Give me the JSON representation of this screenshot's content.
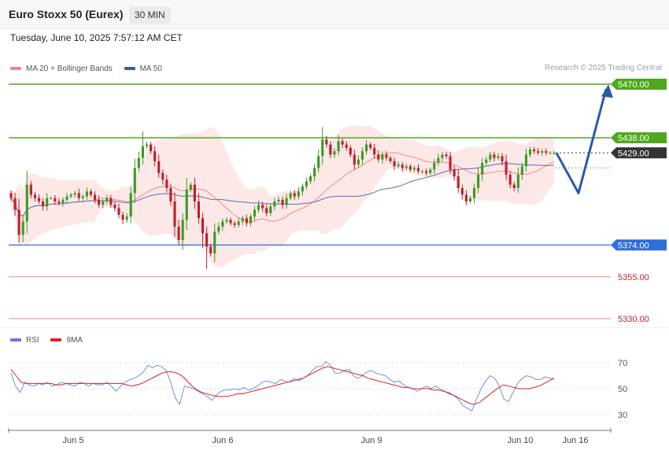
{
  "header": {
    "title": "Euro Stoxx 50 (Eurex)",
    "timeframe": "30 MIN"
  },
  "datetime": "Tuesday, June 10, 2025 7:57:12 AM CET",
  "legend": [
    {
      "label": "MA 20 + Bollinger Bands",
      "color": "#f28b82"
    },
    {
      "label": "MA 50",
      "color": "#3b5f9e"
    }
  ],
  "copyright": "Research © 2025 Trading Central",
  "rsi_legend": [
    {
      "label": "RSI",
      "color": "#5b7fd6"
    },
    {
      "label": "9MA",
      "color": "#e02020"
    }
  ],
  "colors": {
    "up": "#3d9a28",
    "down": "#c0202b",
    "resistance": "#4fa81e",
    "support": "#2e6fd8",
    "support_weak": "#f5a0a0",
    "current": "#333333",
    "forecast": "#2a5aa8"
  },
  "chart_data": [
    {
      "type": "candlestick",
      "title": "Euro Stoxx 50 (Eurex)",
      "timeframe": "30 MIN",
      "x_ticks": [
        "Jun 5",
        "Jun 6",
        "Jun 9",
        "Jun 10",
        "Jun 16"
      ],
      "ylim": [
        5323,
        5475
      ],
      "price_levels": [
        {
          "value": 5470.0,
          "label": "5470.00",
          "kind": "resistance"
        },
        {
          "value": 5438.0,
          "label": "5438.00",
          "kind": "resistance"
        },
        {
          "value": 5429.0,
          "label": "5429.00",
          "kind": "current"
        },
        {
          "value": 5374.0,
          "label": "5374.00",
          "kind": "support"
        },
        {
          "value": 5355.0,
          "label": "5355.00",
          "kind": "support-weak"
        },
        {
          "value": 5330.0,
          "label": "5330.00",
          "kind": "support-weak"
        }
      ],
      "forecast_path": [
        5429,
        5405,
        5467
      ],
      "close": [
        5402,
        5395,
        5380,
        5388,
        5410,
        5404,
        5402,
        5400,
        5397,
        5402,
        5402,
        5400,
        5399,
        5401,
        5403,
        5404,
        5405,
        5402,
        5403,
        5406,
        5404,
        5401,
        5398,
        5400,
        5402,
        5398,
        5396,
        5392,
        5389,
        5391,
        5405,
        5420,
        5426,
        5433,
        5434,
        5430,
        5424,
        5417,
        5413,
        5408,
        5400,
        5385,
        5377,
        5389,
        5407,
        5410,
        5400,
        5390,
        5381,
        5373,
        5369,
        5382,
        5385,
        5388,
        5389,
        5387,
        5386,
        5388,
        5390,
        5387,
        5391,
        5395,
        5398,
        5396,
        5393,
        5397,
        5400,
        5401,
        5398,
        5402,
        5405,
        5403,
        5406,
        5409,
        5412,
        5415,
        5420,
        5427,
        5437,
        5434,
        5428,
        5430,
        5436,
        5434,
        5432,
        5428,
        5422,
        5425,
        5430,
        5434,
        5432,
        5428,
        5425,
        5428,
        5426,
        5424,
        5421,
        5422,
        5420,
        5421,
        5419,
        5420,
        5418,
        5418,
        5417,
        5419,
        5423,
        5426,
        5428,
        5427,
        5419,
        5415,
        5408,
        5404,
        5400,
        5402,
        5408,
        5416,
        5423,
        5425,
        5428,
        5426,
        5427,
        5424,
        5416,
        5410,
        5408,
        5416,
        5421,
        5428,
        5431,
        5430,
        5429,
        5430,
        5429,
        5429,
        5429
      ]
    },
    {
      "type": "line",
      "title": "RSI",
      "yticks": [
        70,
        50,
        30
      ],
      "series": [
        {
          "name": "RSI",
          "values": [
            62,
            52,
            47,
            55,
            53,
            52,
            54,
            53,
            55,
            52,
            53,
            55,
            54,
            53,
            52,
            55,
            54,
            52,
            54,
            53,
            53,
            55,
            52,
            48,
            52,
            55,
            57,
            58,
            60,
            63,
            68,
            66,
            68,
            67,
            64,
            55,
            43,
            38,
            52,
            51,
            50,
            48,
            46,
            44,
            41,
            45,
            48,
            49,
            49,
            50,
            49,
            51,
            49,
            50,
            52,
            55,
            56,
            55,
            54,
            57,
            56,
            55,
            58,
            56,
            58,
            60,
            64,
            67,
            67,
            71,
            68,
            62,
            62,
            64,
            65,
            60,
            58,
            60,
            63,
            64,
            62,
            61,
            60,
            57,
            55,
            56,
            53,
            51,
            50,
            48,
            50,
            52,
            50,
            52,
            50,
            48,
            46,
            45,
            42,
            37,
            35,
            33,
            42,
            50,
            56,
            60,
            58,
            52,
            42,
            40,
            47,
            54,
            58,
            60,
            59,
            57,
            57,
            59,
            58,
            58
          ]
        },
        {
          "name": "9MA",
          "values": [
            65,
            60,
            55,
            54,
            54,
            54,
            54,
            54,
            54,
            53,
            53,
            54,
            54,
            54,
            54,
            54,
            54,
            54,
            54,
            54,
            54,
            54,
            54,
            53,
            52,
            53,
            54,
            56,
            58,
            60,
            62,
            63,
            63,
            62,
            60,
            56,
            52,
            49,
            47,
            46,
            45,
            44,
            44,
            44,
            45,
            46,
            46,
            47,
            48,
            49,
            50,
            51,
            52,
            53,
            54,
            55,
            56,
            57,
            58,
            60,
            62,
            64,
            66,
            67,
            66,
            65,
            64,
            63,
            62,
            61,
            60,
            58,
            57,
            56,
            55,
            54,
            53,
            52,
            51,
            51,
            50,
            50,
            50,
            50,
            49,
            49,
            48,
            47,
            45,
            43,
            41,
            39,
            38,
            39,
            42,
            45,
            48,
            51,
            53,
            52,
            51,
            50,
            50,
            50,
            51,
            52,
            54,
            56,
            58
          ]
        }
      ]
    }
  ]
}
